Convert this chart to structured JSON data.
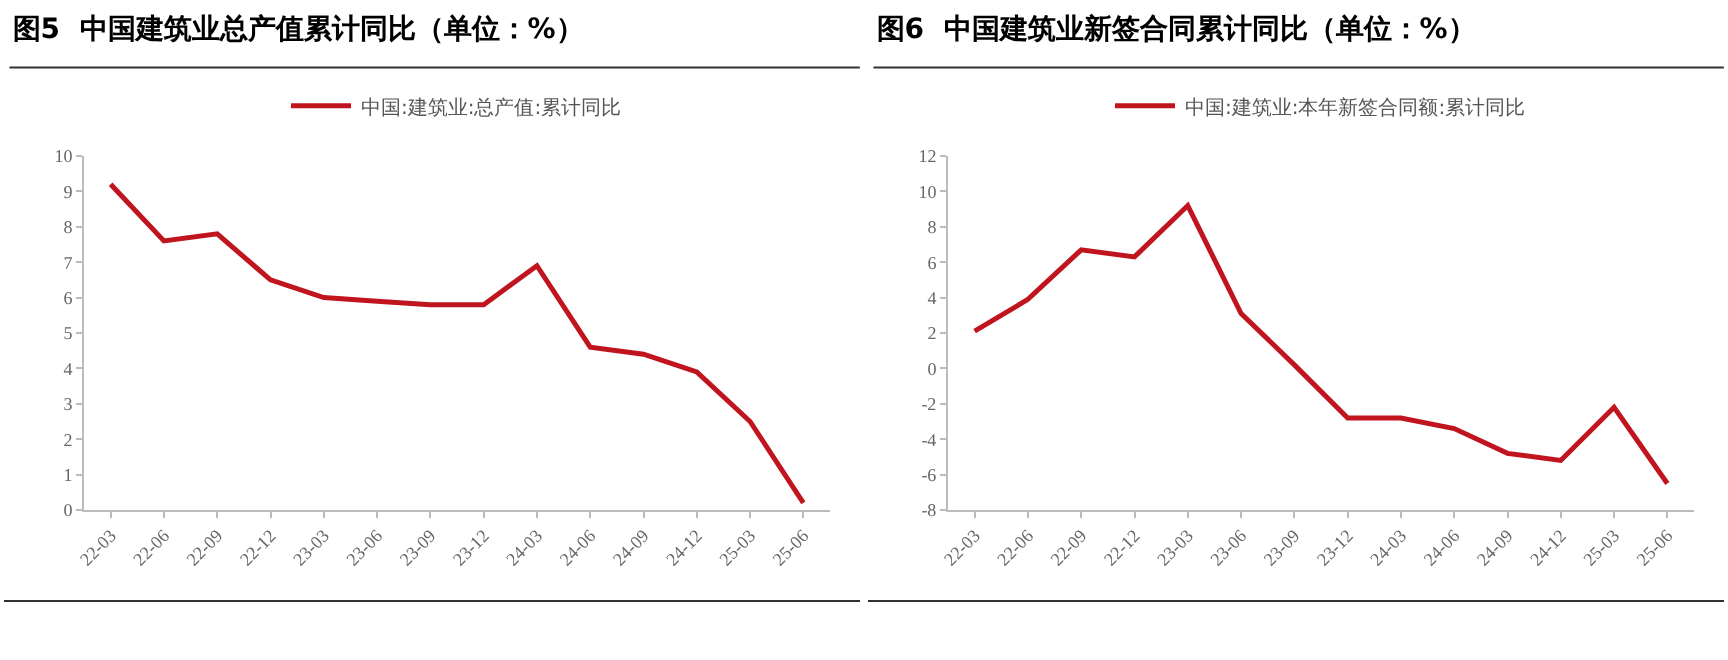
{
  "chart_data": [
    {
      "type": "line",
      "title": "图5  中国建筑业总产值累计同比（单位：%）",
      "categories": [
        "22-03",
        "22-06",
        "22-09",
        "22-12",
        "23-03",
        "23-06",
        "23-09",
        "23-12",
        "24-03",
        "24-06",
        "24-09",
        "24-12",
        "25-03",
        "25-06"
      ],
      "series": [
        {
          "name": "中国:建筑业:总产值:累计同比",
          "color": "#c0141e",
          "values": [
            9.2,
            7.6,
            7.8,
            6.5,
            6.0,
            5.9,
            5.8,
            5.8,
            6.9,
            4.6,
            4.4,
            3.9,
            2.5,
            0.2
          ]
        }
      ],
      "ylim": [
        0,
        10
      ],
      "yticks": [
        0,
        1,
        2,
        3,
        4,
        5,
        6,
        7,
        8,
        9,
        10
      ],
      "grid": false,
      "legend": "top",
      "marker": "none",
      "line_style": "solid"
    },
    {
      "type": "line",
      "title": "图6  中国建筑业新签合同累计同比（单位：%）",
      "categories": [
        "22-03",
        "22-06",
        "22-09",
        "22-12",
        "23-03",
        "23-06",
        "23-09",
        "23-12",
        "24-03",
        "24-06",
        "24-09",
        "24-12",
        "25-03",
        "25-06"
      ],
      "series": [
        {
          "name": "中国:建筑业:本年新签合同额:累计同比",
          "color": "#c0141e",
          "values": [
            2.1,
            3.9,
            6.7,
            6.3,
            9.2,
            3.1,
            0.2,
            -2.8,
            -2.8,
            -3.4,
            -4.8,
            -5.2,
            -2.2,
            -6.5
          ]
        }
      ],
      "ylim": [
        -8,
        12
      ],
      "yticks": [
        -8,
        -6,
        -4,
        -2,
        0,
        2,
        4,
        6,
        8,
        10,
        12
      ],
      "grid": false,
      "legend": "top",
      "marker": "none",
      "line_style": "solid"
    }
  ]
}
